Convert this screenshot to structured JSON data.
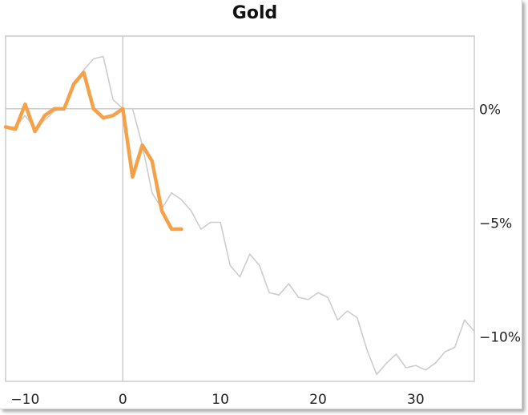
{
  "chart_data": {
    "type": "line",
    "title": "Gold",
    "xlabel": "",
    "ylabel": "",
    "xlim": [
      -12,
      36
    ],
    "ylim": [
      -12,
      3.2
    ],
    "xticks": [
      -10,
      0,
      10,
      20,
      30
    ],
    "xtick_labels": [
      "−10",
      "0",
      "10",
      "20",
      "30"
    ],
    "yticks": [
      0,
      -5,
      -10
    ],
    "ytick_labels": [
      "0%",
      "−5%",
      "−10%"
    ],
    "grid": false,
    "reference_lines": {
      "x": 0,
      "y": 0
    },
    "series": [
      {
        "color": "#cccccc",
        "x": [
          -12,
          -11,
          -10,
          -9,
          -8,
          -7,
          -6,
          -5,
          -4,
          -3,
          -2,
          -1,
          0,
          1,
          2,
          3,
          4,
          5,
          6,
          7,
          8,
          9,
          10,
          11,
          12,
          13,
          14,
          15,
          16,
          17,
          18,
          19,
          20,
          21,
          22,
          23,
          24,
          25,
          26,
          27,
          28,
          29,
          30,
          31,
          32,
          33,
          34,
          35,
          36
        ],
        "y": [
          -0.8,
          -0.8,
          -0.3,
          -0.9,
          -0.5,
          -0.1,
          0,
          1,
          1.7,
          2.2,
          2.3,
          0.4,
          0,
          0,
          -1.6,
          -3.7,
          -4.4,
          -3.7,
          -4,
          -4.5,
          -5.3,
          -5,
          -5,
          -6.9,
          -7.4,
          -6.4,
          -6.9,
          -8.1,
          -8.2,
          -7.7,
          -8.3,
          -8.4,
          -8.1,
          -8.3,
          -9.3,
          -8.9,
          -9.2,
          -10.6,
          -11.7,
          -11.2,
          -10.8,
          -11.4,
          -11.3,
          -11.5,
          -11.2,
          -10.7,
          -10.5,
          -9.3,
          -9.8
        ]
      },
      {
        "color": "#f5a14a",
        "x": [
          -12,
          -11,
          -10,
          -9,
          -8,
          -7,
          -6,
          -5,
          -4,
          -3,
          -2,
          -1,
          0,
          1,
          2,
          3,
          4,
          5,
          6
        ],
        "y": [
          -0.8,
          -0.9,
          0.2,
          -1,
          -0.3,
          0,
          0,
          1.1,
          1.6,
          0,
          -0.4,
          -0.3,
          0,
          -3,
          -1.6,
          -2.3,
          -4.5,
          -5.3,
          -5.3
        ]
      }
    ]
  }
}
